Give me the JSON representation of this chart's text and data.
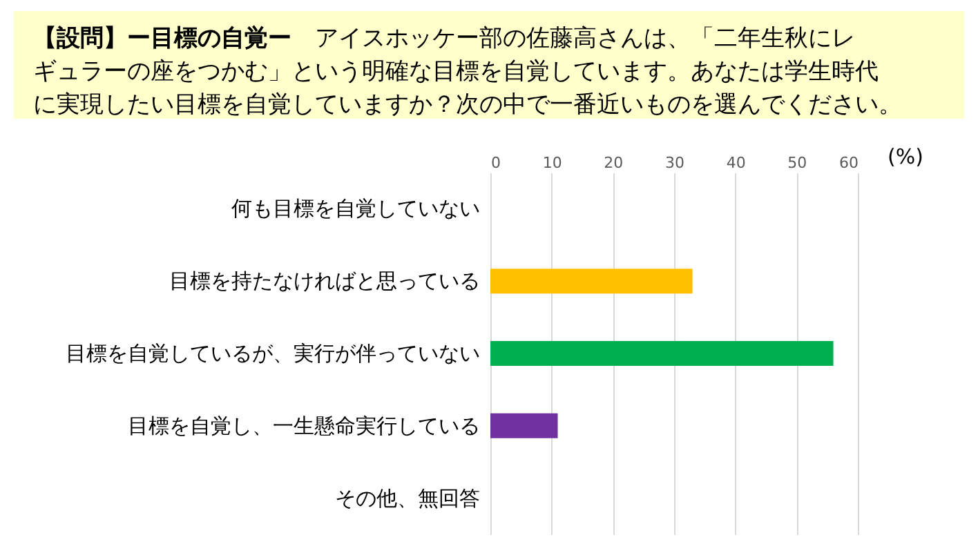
{
  "chart_data": {
    "type": "bar",
    "orientation": "horizontal",
    "title": "【設問】ー目標の自覚ー",
    "subtitle": "アイスホッケー部の佐藤高さんは、「二年生秋にレギュラーの座をつかむ」という明確な目標を自覚しています。あなたは学生時代に実現したい目標を自覚していますか？次の中で一番近いものを選んでください。",
    "categories": [
      "何も目標を自覚していない",
      "目標を持たなければと思っている",
      "目標を自覚しているが、実行が伴っていない",
      "目標を自覚し、一生懸命実行している",
      "その他、無回答"
    ],
    "values": [
      0,
      33,
      56,
      11,
      0
    ],
    "colors": [
      null,
      "#ffc000",
      "#00b050",
      "#7030a0",
      null
    ],
    "xlabel": "(%)",
    "xlim": [
      0,
      60
    ],
    "xticks": [
      0,
      10,
      20,
      30,
      40,
      50,
      60
    ],
    "grid": "x"
  }
}
